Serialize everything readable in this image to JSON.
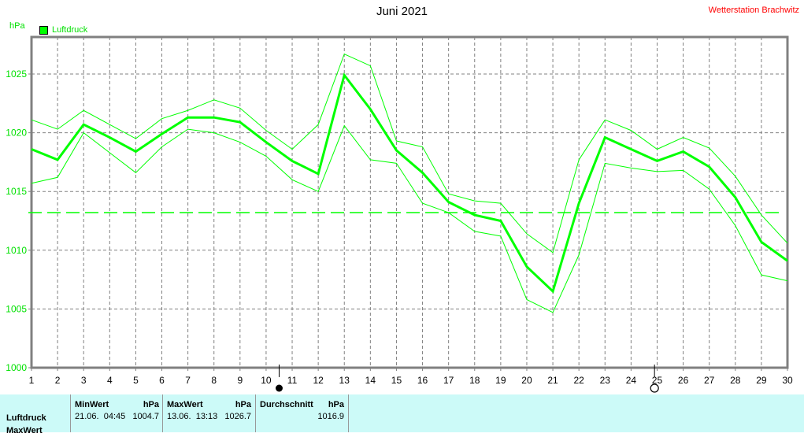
{
  "header": {
    "title": "Juni 2021",
    "station": "Wetterstation Brachwitz",
    "unit": "hPa",
    "legend_label": "Luftdruck"
  },
  "colors": {
    "series": "#00ff00",
    "grid": "#808080",
    "axis": "#808080",
    "ytick": "#00e000",
    "station": "#ff0000",
    "panel_bg": "#ccfaf8"
  },
  "chart_data": {
    "type": "line",
    "title": "Juni 2021",
    "xlabel": "",
    "ylabel": "hPa",
    "ylim": [
      1000,
      1028
    ],
    "xlim": [
      1,
      30
    ],
    "yticks": [
      1000,
      1005,
      1010,
      1015,
      1020,
      1025
    ],
    "x": [
      1,
      2,
      3,
      4,
      5,
      6,
      7,
      8,
      9,
      10,
      11,
      12,
      13,
      14,
      15,
      16,
      17,
      18,
      19,
      20,
      21,
      22,
      23,
      24,
      25,
      26,
      27,
      28,
      29,
      30
    ],
    "grid": true,
    "legend": [
      "Luftdruck"
    ],
    "series": [
      {
        "name": "Luftdruck (Mittel)",
        "width": 3,
        "values": [
          1018.6,
          1017.7,
          1020.7,
          1019.6,
          1018.4,
          1019.9,
          1021.3,
          1021.3,
          1020.9,
          1019.2,
          1017.6,
          1016.5,
          1024.9,
          1022.0,
          1018.5,
          1016.6,
          1014.1,
          1013.0,
          1012.5,
          1008.6,
          1006.5,
          1014.0,
          1019.6,
          1018.6,
          1017.6,
          1018.4,
          1017.1,
          1014.5,
          1010.7,
          1009.1
        ]
      },
      {
        "name": "Luftdruck (Max)",
        "width": 1,
        "values": [
          1021.1,
          1020.3,
          1021.9,
          1020.7,
          1019.5,
          1021.2,
          1021.9,
          1022.8,
          1022.1,
          1020.2,
          1018.6,
          1020.7,
          1026.7,
          1025.7,
          1019.3,
          1018.8,
          1014.8,
          1014.2,
          1014.0,
          1011.4,
          1009.8,
          1017.7,
          1021.1,
          1020.2,
          1018.6,
          1019.6,
          1018.7,
          1016.3,
          1013.0,
          1010.6
        ]
      },
      {
        "name": "Luftdruck (Min)",
        "width": 1,
        "values": [
          1015.7,
          1016.2,
          1020.0,
          1018.3,
          1016.6,
          1018.8,
          1020.3,
          1020.0,
          1019.2,
          1018.0,
          1016.0,
          1015.0,
          1020.6,
          1017.7,
          1017.4,
          1014.0,
          1013.2,
          1011.6,
          1011.2,
          1005.8,
          1004.7,
          1009.6,
          1017.4,
          1017.0,
          1016.7,
          1016.8,
          1015.2,
          1012.1,
          1007.9,
          1007.4
        ]
      }
    ],
    "average_line": {
      "value": 1013.2,
      "style": "dashed"
    },
    "annotations": [
      {
        "x": 10.5,
        "symbol": "full-moon-filled",
        "label": "●"
      },
      {
        "x": 24.9,
        "symbol": "new-moon-open",
        "label": "○"
      }
    ]
  },
  "panel": {
    "row_label_1": "Luftdruck",
    "row_label_2": "MaxWert",
    "min": {
      "header": "MinWert",
      "unit": "hPa",
      "date": "21.06.",
      "time": "04:45",
      "value": "1004.7"
    },
    "max": {
      "header": "MaxWert",
      "unit": "hPa",
      "date": "13.06.",
      "time": "13:13",
      "value": "1026.7"
    },
    "avg": {
      "header": "Durchschnitt",
      "unit": "hPa",
      "value": "1016.9"
    }
  }
}
